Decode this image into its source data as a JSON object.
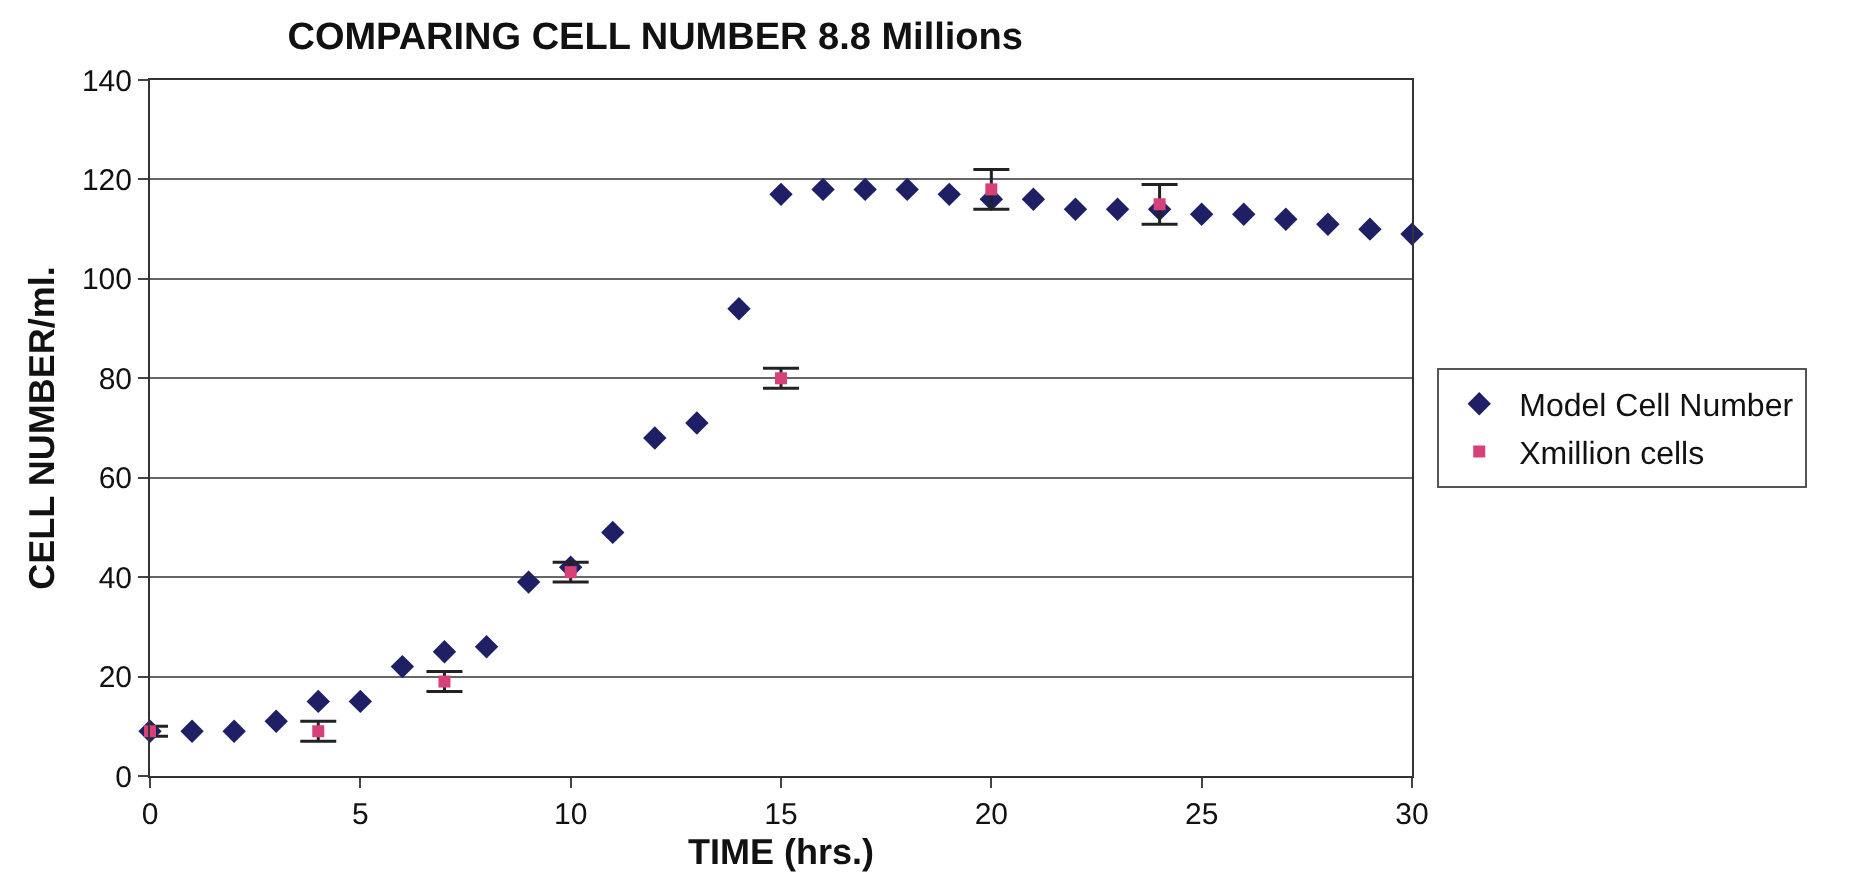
{
  "chart_data": {
    "type": "scatter",
    "title": "COMPARING CELL NUMBER 8.8 Millions",
    "xlabel": "TIME (hrs.)",
    "ylabel": "CELL NUMBER/ml.",
    "xlim": [
      0,
      30
    ],
    "xticks": [
      0,
      5,
      10,
      15,
      20,
      25,
      30
    ],
    "ylim": [
      0,
      140
    ],
    "yticks": [
      0,
      20,
      40,
      60,
      80,
      100,
      120,
      140
    ],
    "grid": "y",
    "legend": "right",
    "series": [
      {
        "name": "Model Cell Number",
        "color": "#1f1f66",
        "marker": "diamond",
        "x": [
          0,
          1,
          2,
          3,
          4,
          5,
          6,
          7,
          8,
          9,
          10,
          11,
          12,
          13,
          14,
          15,
          16,
          17,
          18,
          19,
          20,
          21,
          22,
          23,
          24,
          25,
          26,
          27,
          28,
          29,
          30
        ],
        "values": [
          9,
          9,
          9,
          11,
          15,
          15,
          22,
          25,
          26,
          39,
          42,
          49,
          68,
          71,
          94,
          117,
          118,
          118,
          118,
          117,
          116,
          116,
          114,
          114,
          114,
          113,
          113,
          112,
          111,
          110,
          109
        ]
      },
      {
        "name": "Xmillion cells",
        "color": "#d8407a",
        "marker": "square",
        "x": [
          0,
          4,
          7,
          10,
          15,
          20,
          24
        ],
        "values": [
          9,
          9,
          19,
          41,
          80,
          118,
          115
        ],
        "errors": [
          1,
          2,
          2,
          2,
          2,
          4,
          4
        ]
      }
    ]
  }
}
